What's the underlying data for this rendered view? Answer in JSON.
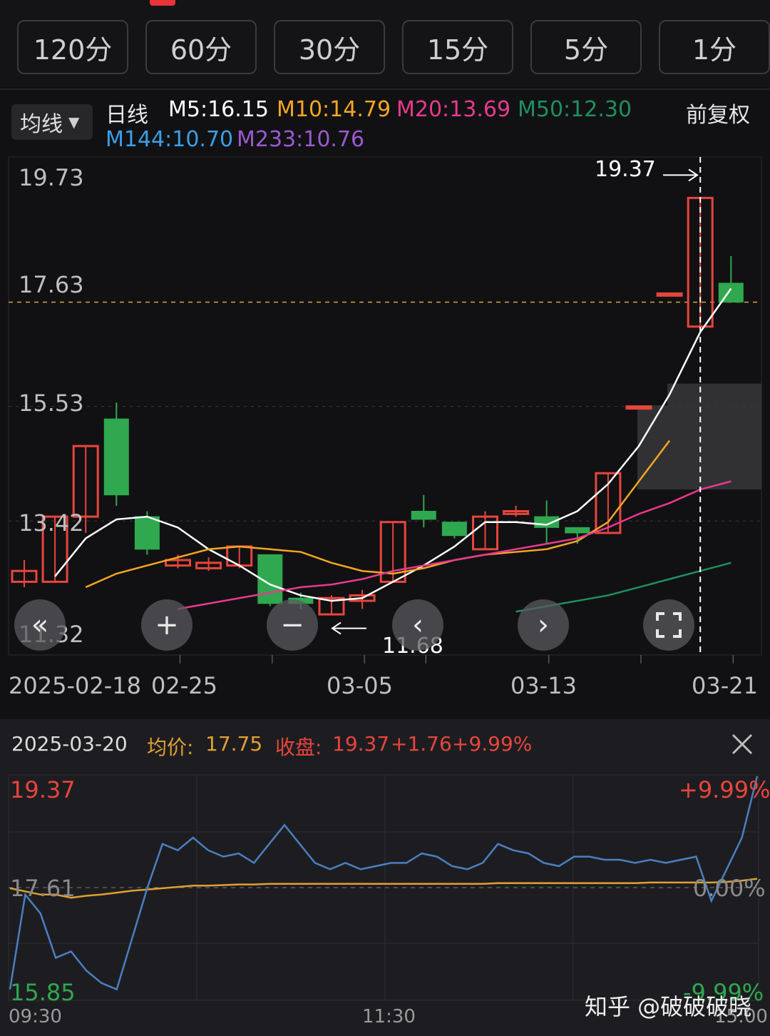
{
  "timeframes": [
    {
      "label": "120分"
    },
    {
      "label": "60分"
    },
    {
      "label": "30分"
    },
    {
      "label": "15分"
    },
    {
      "label": "5分"
    },
    {
      "label": "1分"
    }
  ],
  "ma_select": {
    "label": "均线"
  },
  "legend": {
    "period": "日线",
    "adjust": "前复权",
    "items": [
      {
        "text": "M5:16.15",
        "color": "#ffffff"
      },
      {
        "text": "M10:14.79",
        "color": "#f5a623"
      },
      {
        "text": "M20:13.69",
        "color": "#e8398f"
      },
      {
        "text": "M50:12.30",
        "color": "#1e9060"
      },
      {
        "text": "M144:10.70",
        "color": "#3b9ee8"
      },
      {
        "text": "M233:10.76",
        "color": "#9b59d0"
      }
    ]
  },
  "price_axis": [
    "19.73",
    "17.63",
    "15.53",
    "13.42",
    "11.32"
  ],
  "date_axis": [
    "2025-02-18",
    "02-25",
    "03-05",
    "03-13",
    "03-21"
  ],
  "annotations": {
    "high": "19.37",
    "low": "11.68"
  },
  "colors": {
    "up": "#e8453c",
    "down": "#2fa84f",
    "ma5": "#ffffff",
    "ma10": "#f5a623",
    "ma20": "#e8398f",
    "ma50": "#1e9060",
    "intraday_price": "#4a7fc1",
    "intraday_avg": "#e0a030"
  },
  "chart_data": {
    "type": "candlestick",
    "ylim": [
      11.32,
      19.73
    ],
    "candles": [
      {
        "open": 12.3,
        "close": 12.5,
        "high": 12.7,
        "low": 12.2
      },
      {
        "open": 12.3,
        "close": 13.5,
        "high": 13.5,
        "low": 12.3
      },
      {
        "open": 13.5,
        "close": 14.8,
        "high": 14.8,
        "low": 13.2
      },
      {
        "open": 15.3,
        "close": 13.9,
        "high": 15.6,
        "low": 13.7
      },
      {
        "open": 13.5,
        "close": 12.9,
        "high": 13.6,
        "low": 12.8
      },
      {
        "open": 12.6,
        "close": 12.7,
        "high": 12.8,
        "low": 12.55
      },
      {
        "open": 12.55,
        "close": 12.65,
        "high": 12.75,
        "low": 12.5
      },
      {
        "open": 12.6,
        "close": 12.95,
        "high": 12.95,
        "low": 12.55
      },
      {
        "open": 12.8,
        "close": 11.9,
        "high": 12.8,
        "low": 11.85
      },
      {
        "open": 12.0,
        "close": 11.9,
        "high": 12.1,
        "low": 11.8
      },
      {
        "open": 11.7,
        "close": 12.0,
        "high": 12.05,
        "low": 11.68
      },
      {
        "open": 11.95,
        "close": 12.05,
        "high": 12.15,
        "low": 11.8
      },
      {
        "open": 12.3,
        "close": 13.4,
        "high": 13.4,
        "low": 12.3
      },
      {
        "open": 13.6,
        "close": 13.45,
        "high": 13.9,
        "low": 13.3
      },
      {
        "open": 13.4,
        "close": 13.15,
        "high": 13.4,
        "low": 13.1
      },
      {
        "open": 12.9,
        "close": 13.5,
        "high": 13.6,
        "low": 12.9
      },
      {
        "open": 13.55,
        "close": 13.6,
        "high": 13.7,
        "low": 13.5
      },
      {
        "open": 13.5,
        "close": 13.3,
        "high": 13.8,
        "low": 13.0
      },
      {
        "open": 13.3,
        "close": 13.2,
        "high": 13.3,
        "low": 13.0
      },
      {
        "open": 13.2,
        "close": 14.3,
        "high": 14.3,
        "low": 13.2
      },
      {
        "open": 15.53,
        "close": 15.53,
        "high": 15.53,
        "low": 15.53
      },
      {
        "open": 17.61,
        "close": 17.61,
        "high": 17.61,
        "low": 17.61
      },
      {
        "open": 17.0,
        "close": 19.37,
        "high": 19.37,
        "low": 17.0
      },
      {
        "open": 17.8,
        "close": 17.45,
        "high": 18.3,
        "low": 17.45
      }
    ],
    "ma5": [
      null,
      12.4,
      13.1,
      13.45,
      13.5,
      13.3,
      12.9,
      12.6,
      12.25,
      12.05,
      11.95,
      12.0,
      12.3,
      12.6,
      12.95,
      13.4,
      13.4,
      13.35,
      13.6,
      14.1,
      14.8,
      15.75,
      16.9,
      17.7
    ],
    "ma10": [
      null,
      null,
      12.2,
      12.45,
      12.6,
      12.75,
      12.9,
      12.95,
      12.9,
      12.85,
      12.65,
      12.5,
      12.45,
      12.55,
      12.7,
      12.8,
      12.85,
      12.9,
      13.05,
      13.4,
      14.15,
      14.9,
      null,
      null
    ],
    "ma20": [
      null,
      null,
      null,
      null,
      null,
      11.8,
      11.9,
      12.0,
      12.1,
      12.2,
      12.25,
      12.35,
      12.5,
      12.6,
      12.7,
      12.8,
      12.9,
      13.0,
      13.1,
      13.3,
      13.55,
      13.75,
      14.0,
      14.15
    ],
    "ma50": [
      null,
      null,
      null,
      null,
      null,
      null,
      null,
      null,
      null,
      null,
      null,
      null,
      null,
      null,
      null,
      null,
      11.75,
      11.85,
      11.95,
      12.05,
      12.2,
      12.35,
      12.5,
      12.65
    ]
  },
  "intraday": {
    "date": "2025-03-20",
    "avg_label": "均价:",
    "avg_value": "17.75",
    "close_label": "收盘:",
    "close_value": "19.37",
    "change": "+1.76",
    "change_pct": "+9.99%",
    "price_high": "19.37",
    "price_mid": "17.61",
    "price_low": "15.85",
    "pct_high": "+9.99%",
    "pct_mid": "0.00%",
    "pct_low": "-9.99%",
    "time_start": "09:30",
    "time_mid": "11:30",
    "time_end": "15:00",
    "price_series": [
      16.0,
      17.5,
      17.2,
      16.5,
      16.6,
      16.3,
      16.1,
      16.0,
      16.8,
      17.6,
      18.3,
      18.2,
      18.4,
      18.2,
      18.1,
      18.15,
      18.0,
      18.3,
      18.6,
      18.3,
      18.0,
      17.9,
      18.0,
      17.9,
      17.95,
      18.0,
      18.0,
      18.15,
      18.1,
      17.95,
      17.9,
      18.0,
      18.3,
      18.2,
      18.15,
      18.0,
      17.95,
      18.1,
      18.1,
      18.05,
      18.05,
      18.0,
      18.05,
      18.0,
      18.05,
      18.1,
      17.4,
      17.9,
      18.4,
      19.37
    ],
    "avg_series": [
      17.6,
      17.55,
      17.5,
      17.5,
      17.45,
      17.48,
      17.5,
      17.53,
      17.56,
      17.58,
      17.6,
      17.62,
      17.64,
      17.64,
      17.65,
      17.66,
      17.66,
      17.67,
      17.67,
      17.67,
      17.67,
      17.67,
      17.67,
      17.67,
      17.67,
      17.67,
      17.67,
      17.67,
      17.67,
      17.67,
      17.67,
      17.67,
      17.68,
      17.68,
      17.68,
      17.68,
      17.68,
      17.68,
      17.68,
      17.68,
      17.68,
      17.68,
      17.69,
      17.69,
      17.69,
      17.69,
      17.69,
      17.7,
      17.72,
      17.75
    ],
    "ylim": [
      15.85,
      19.37
    ]
  },
  "watermark": "知乎 @破破破晓"
}
